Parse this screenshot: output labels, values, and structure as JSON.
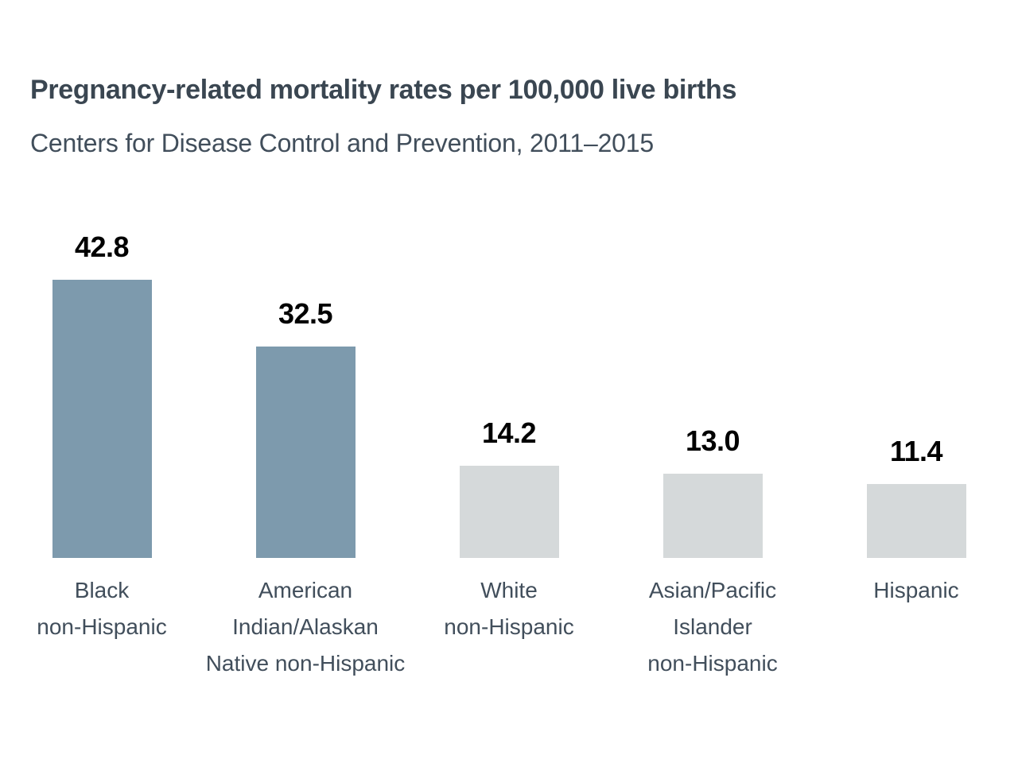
{
  "header": {
    "title": "Pregnancy-related mortality rates per 100,000 live births",
    "subtitle": "Centers for Disease Control and Prevention, 2011–2015"
  },
  "colors": {
    "highlight_bar": "#7d9aad",
    "muted_bar": "#d5d9da",
    "title_text": "#3a4651",
    "subtitle_text": "#414e5b",
    "category_text": "#414e5b",
    "value_text": "#000000",
    "background": "#ffffff"
  },
  "chart_data": {
    "type": "bar",
    "title": "Pregnancy-related mortality rates per 100,000 live births",
    "subtitle": "Centers for Disease Control and Prevention, 2011–2015",
    "categories": [
      "Black non-Hispanic",
      "American Indian/Alaskan Native non-Hispanic",
      "White non-Hispanic",
      "Asian/Pacific Islander non-Hispanic",
      "Hispanic"
    ],
    "category_lines": [
      [
        "Black",
        "non-Hispanic"
      ],
      [
        "American",
        "Indian/Alaskan",
        "Native non-Hispanic"
      ],
      [
        "White",
        "non-Hispanic"
      ],
      [
        "Asian/Pacific",
        "Islander",
        "non-Hispanic"
      ],
      [
        "Hispanic"
      ]
    ],
    "values": [
      42.8,
      32.5,
      14.2,
      13.0,
      11.4
    ],
    "value_labels": [
      "42.8",
      "32.5",
      "14.2",
      "13.0",
      "11.4"
    ],
    "highlighted": [
      true,
      true,
      false,
      false,
      false
    ],
    "xlabel": "",
    "ylabel": "",
    "ylim": [
      0,
      45
    ],
    "grid": false,
    "legend": "none",
    "data_labels": "above bars",
    "axis_lines": "none"
  }
}
